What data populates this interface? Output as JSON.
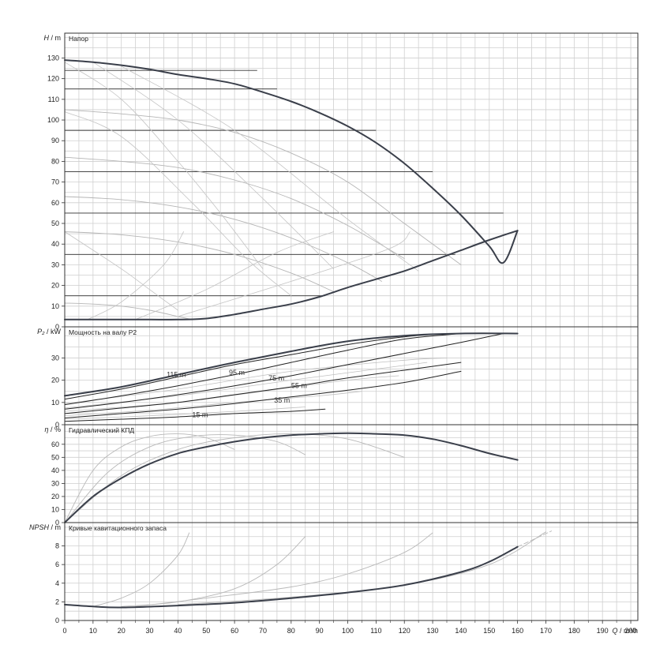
{
  "x_axis": {
    "label_sym": "Q",
    "label_unit": " / m³/h",
    "ticks": [
      "0",
      "10",
      "20",
      "30",
      "40",
      "50",
      "60",
      "70",
      "80",
      "90",
      "100",
      "110",
      "120",
      "130",
      "140",
      "150",
      "160",
      "170",
      "180",
      "190",
      "200"
    ],
    "range": [
      0,
      202.5
    ]
  },
  "panels": [
    {
      "id": "head",
      "title": "Напор",
      "y_sym": "H",
      "y_unit": " / m",
      "ticks": [
        "0",
        "10",
        "20",
        "30",
        "40",
        "50",
        "60",
        "70",
        "80",
        "90",
        "100",
        "110",
        "120",
        "130"
      ],
      "ylim": [
        0,
        142
      ]
    },
    {
      "id": "power",
      "title": "Мощность на валу P2",
      "y_sym": "P₂",
      "y_unit": " / kW",
      "ticks": [
        "0",
        "10",
        "20",
        "30"
      ],
      "ylim": [
        0,
        44
      ]
    },
    {
      "id": "eff",
      "title": "Гидравлический КПД",
      "y_sym": "η",
      "y_unit": " / %",
      "ticks": [
        "0",
        "10",
        "20",
        "30",
        "40",
        "50",
        "60"
      ],
      "ylim": [
        0,
        75
      ]
    },
    {
      "id": "npsh",
      "title": "Кривые кавитационного запаса",
      "y_sym": "NPSH",
      "y_unit": " / m",
      "ticks": [
        "0",
        "2",
        "4",
        "6",
        "8"
      ],
      "ylim": [
        0,
        10.5
      ]
    }
  ],
  "chart_data": {
    "type": "line",
    "head_envelope": {
      "upper": [
        [
          0,
          129
        ],
        [
          10,
          128
        ],
        [
          20,
          126.5
        ],
        [
          30,
          124.5
        ],
        [
          40,
          122
        ],
        [
          50,
          120
        ],
        [
          60,
          117.5
        ],
        [
          70,
          113.5
        ],
        [
          80,
          109
        ],
        [
          90,
          103.5
        ],
        [
          100,
          97
        ],
        [
          110,
          89
        ],
        [
          120,
          79
        ],
        [
          130,
          67
        ],
        [
          140,
          54
        ],
        [
          150,
          39
        ],
        [
          155,
          31
        ],
        [
          160,
          46.5
        ]
      ],
      "lower": [
        [
          0,
          3.5
        ],
        [
          10,
          3.5
        ],
        [
          20,
          3.5
        ],
        [
          30,
          3.5
        ],
        [
          40,
          3.5
        ],
        [
          50,
          4
        ],
        [
          60,
          6
        ],
        [
          70,
          8.5
        ],
        [
          80,
          11
        ],
        [
          90,
          14.5
        ],
        [
          100,
          19
        ],
        [
          110,
          23
        ],
        [
          120,
          27
        ],
        [
          130,
          32
        ],
        [
          140,
          37
        ],
        [
          150,
          42
        ],
        [
          160,
          46.5
        ]
      ]
    },
    "head_setpoints": [
      124,
      115,
      95,
      75,
      55,
      35,
      15
    ],
    "head_setpoint_ranges": [
      [
        0,
        68
      ],
      [
        0,
        75
      ],
      [
        0,
        110
      ],
      [
        0,
        130
      ],
      [
        0,
        155
      ],
      [
        0,
        138
      ],
      [
        0,
        92
      ]
    ],
    "head_speed_curves": [
      [
        [
          0,
          105
        ],
        [
          20,
          103
        ],
        [
          40,
          100
        ],
        [
          60,
          94
        ],
        [
          80,
          84
        ],
        [
          100,
          70
        ],
        [
          120,
          50
        ],
        [
          140,
          30
        ]
      ],
      [
        [
          0,
          82
        ],
        [
          20,
          80
        ],
        [
          40,
          77
        ],
        [
          60,
          71
        ],
        [
          80,
          62
        ],
        [
          100,
          49
        ],
        [
          120,
          33
        ]
      ],
      [
        [
          0,
          63
        ],
        [
          20,
          61.5
        ],
        [
          40,
          58
        ],
        [
          60,
          52
        ],
        [
          80,
          43
        ],
        [
          100,
          31
        ],
        [
          112,
          22
        ]
      ],
      [
        [
          0,
          46
        ],
        [
          20,
          44.5
        ],
        [
          40,
          41
        ],
        [
          60,
          35
        ],
        [
          80,
          26
        ],
        [
          95,
          17
        ]
      ],
      [
        [
          0,
          11.5
        ],
        [
          10,
          11
        ],
        [
          20,
          10
        ],
        [
          30,
          8
        ],
        [
          40,
          5
        ],
        [
          45,
          3.5
        ]
      ]
    ],
    "power_envelope": [
      [
        0,
        13
      ],
      [
        20,
        17
      ],
      [
        40,
        22.5
      ],
      [
        60,
        28
      ],
      [
        80,
        33
      ],
      [
        100,
        37.5
      ],
      [
        120,
        40
      ],
      [
        140,
        41
      ],
      [
        160,
        41
      ]
    ],
    "power_setpoints": [
      {
        "label": "115 m",
        "at": [
          36,
          22.5
        ],
        "points": [
          [
            0,
            11.5
          ],
          [
            20,
            16
          ],
          [
            40,
            21.5
          ],
          [
            60,
            27
          ],
          [
            80,
            31.5
          ],
          [
            100,
            36
          ],
          [
            120,
            39.5
          ],
          [
            135,
            41
          ]
        ]
      },
      {
        "label": "95 m",
        "at": [
          58,
          23.5
        ],
        "points": [
          [
            0,
            9
          ],
          [
            20,
            13
          ],
          [
            40,
            17.5
          ],
          [
            60,
            22.5
          ],
          [
            80,
            28
          ],
          [
            100,
            33.5
          ],
          [
            120,
            38.5
          ],
          [
            140,
            41
          ]
        ]
      },
      {
        "label": "75 m",
        "at": [
          72,
          21
        ],
        "points": [
          [
            0,
            7
          ],
          [
            20,
            10
          ],
          [
            40,
            13.5
          ],
          [
            60,
            17.5
          ],
          [
            80,
            22
          ],
          [
            100,
            27
          ],
          [
            120,
            32
          ],
          [
            140,
            37
          ],
          [
            155,
            41
          ]
        ]
      },
      {
        "label": "55 m",
        "at": [
          80,
          17.5
        ],
        "points": [
          [
            0,
            5
          ],
          [
            20,
            7.5
          ],
          [
            40,
            10
          ],
          [
            60,
            13.5
          ],
          [
            80,
            17
          ],
          [
            100,
            21
          ],
          [
            120,
            24.5
          ],
          [
            140,
            28
          ]
        ]
      },
      {
        "label": "35 m",
        "at": [
          74,
          11
        ],
        "points": [
          [
            0,
            3
          ],
          [
            20,
            5
          ],
          [
            40,
            7
          ],
          [
            60,
            9.5
          ],
          [
            80,
            12.5
          ],
          [
            100,
            15.5
          ],
          [
            120,
            19
          ],
          [
            140,
            24
          ]
        ]
      },
      {
        "label": "15 m",
        "at": [
          45,
          4.5
        ],
        "points": [
          [
            0,
            1.5
          ],
          [
            20,
            2.5
          ],
          [
            40,
            3.5
          ],
          [
            60,
            5
          ],
          [
            80,
            6
          ],
          [
            92,
            7
          ]
        ]
      }
    ],
    "efficiency_envelope": [
      [
        0,
        0
      ],
      [
        10,
        20
      ],
      [
        20,
        34
      ],
      [
        30,
        45
      ],
      [
        40,
        53
      ],
      [
        50,
        58
      ],
      [
        60,
        62
      ],
      [
        70,
        65
      ],
      [
        80,
        67
      ],
      [
        90,
        68
      ],
      [
        100,
        68.5
      ],
      [
        110,
        68
      ],
      [
        120,
        67
      ],
      [
        130,
        64
      ],
      [
        140,
        59
      ],
      [
        150,
        53
      ],
      [
        160,
        48
      ]
    ],
    "efficiency_speed_curves": [
      [
        [
          0,
          0
        ],
        [
          10,
          40
        ],
        [
          20,
          58
        ],
        [
          30,
          66
        ],
        [
          40,
          68
        ],
        [
          50,
          65
        ],
        [
          60,
          56
        ]
      ],
      [
        [
          0,
          0
        ],
        [
          15,
          38
        ],
        [
          30,
          58
        ],
        [
          45,
          66
        ],
        [
          60,
          67
        ],
        [
          75,
          62
        ],
        [
          85,
          52
        ]
      ],
      [
        [
          0,
          0
        ],
        [
          20,
          36
        ],
        [
          40,
          56
        ],
        [
          60,
          65
        ],
        [
          80,
          68
        ],
        [
          100,
          64
        ],
        [
          120,
          50
        ]
      ]
    ],
    "npsh_envelope": [
      [
        0,
        1.7
      ],
      [
        10,
        1.5
      ],
      [
        20,
        1.4
      ],
      [
        40,
        1.6
      ],
      [
        60,
        1.9
      ],
      [
        80,
        2.4
      ],
      [
        100,
        3
      ],
      [
        120,
        3.8
      ],
      [
        140,
        5.2
      ],
      [
        150,
        6.3
      ],
      [
        160,
        7.9
      ]
    ],
    "npsh_speed_curves": [
      [
        [
          10,
          1.5
        ],
        [
          20,
          2.4
        ],
        [
          30,
          4
        ],
        [
          40,
          7
        ],
        [
          44,
          9.4
        ]
      ],
      [
        [
          20,
          1.5
        ],
        [
          40,
          2
        ],
        [
          60,
          3.4
        ],
        [
          75,
          6
        ],
        [
          85,
          9
        ]
      ],
      [
        [
          25,
          1.5
        ],
        [
          50,
          2.4
        ],
        [
          80,
          3.6
        ],
        [
          100,
          5
        ],
        [
          120,
          7.3
        ],
        [
          130,
          9.4
        ]
      ],
      [
        [
          40,
          1.7
        ],
        [
          80,
          2.5
        ],
        [
          120,
          3.8
        ],
        [
          150,
          6
        ],
        [
          170,
          9.5
        ]
      ]
    ]
  }
}
